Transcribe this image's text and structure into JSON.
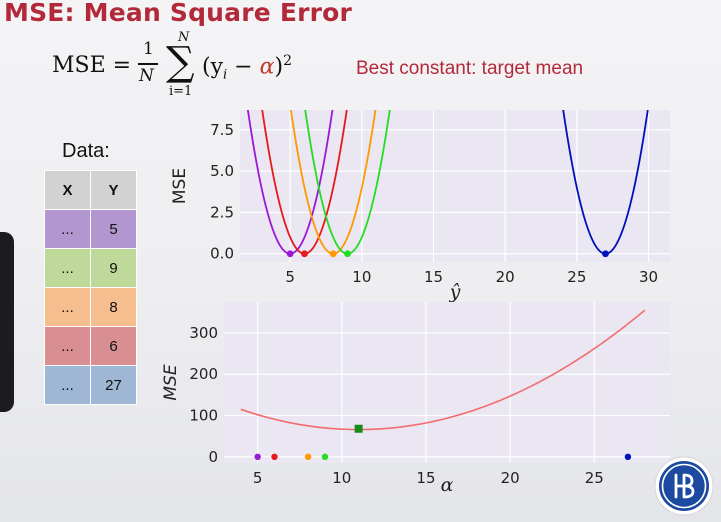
{
  "slide": {
    "title": "MSE: Mean Square Error",
    "subtitle": "Best constant:  target mean"
  },
  "formula": {
    "lhs": "MSE =",
    "frac_num": "1",
    "frac_den": "N",
    "sum_top": "N",
    "sum_bottom": "i=1",
    "body_open": "(y",
    "body_sub": "i",
    "body_minus": " − ",
    "alpha": "α",
    "body_close": ")",
    "power": "2"
  },
  "data_table": {
    "label": "Data:",
    "headers": [
      "X",
      "Y"
    ],
    "rows": [
      {
        "x": "...",
        "y": "5",
        "color": "#b196cf"
      },
      {
        "x": "...",
        "y": "9",
        "color": "#bfd99a"
      },
      {
        "x": "...",
        "y": "8",
        "color": "#f6bd8e"
      },
      {
        "x": "...",
        "y": "6",
        "color": "#d98f91"
      },
      {
        "x": "...",
        "y": "27",
        "color": "#9db7d4"
      }
    ]
  },
  "chart_data": [
    {
      "type": "line",
      "ylabel": "MSE",
      "xlabel": "ŷ",
      "xlim": [
        1.5,
        31.5
      ],
      "ylim": [
        -0.5,
        8.7
      ],
      "xticks": [
        "5",
        "10",
        "15",
        "20",
        "25",
        "30"
      ],
      "yticks": [
        "0.0",
        "2.5",
        "5.0",
        "7.5"
      ],
      "grid": true,
      "series": [
        {
          "target": 5,
          "color": "#9b19d6"
        },
        {
          "target": 6,
          "color": "#e41a1c"
        },
        {
          "target": 8,
          "color": "#ff9900"
        },
        {
          "target": 9,
          "color": "#22dd22"
        },
        {
          "target": 27,
          "color": "#0010bb"
        }
      ]
    },
    {
      "type": "line",
      "ylabel": "MSE",
      "xlabel": "α",
      "xlim": [
        3,
        29.5
      ],
      "ylim": [
        -15,
        375
      ],
      "xticks": [
        "5",
        "10",
        "15",
        "20",
        "25"
      ],
      "yticks": [
        "0",
        "100",
        "200",
        "300"
      ],
      "grid": true,
      "curve": {
        "x_range": [
          4,
          28
        ],
        "color": "#f26d6d",
        "targets": [
          5,
          9,
          8,
          6,
          27
        ]
      },
      "optimum": {
        "alpha": 11,
        "mse": 68,
        "color": "#1a8a1a"
      },
      "target_points": [
        {
          "x": 5,
          "y": 0,
          "color": "#9b19d6"
        },
        {
          "x": 6,
          "y": 0,
          "color": "#e41a1c"
        },
        {
          "x": 8,
          "y": 0,
          "color": "#ff9900"
        },
        {
          "x": 9,
          "y": 0,
          "color": "#22dd22"
        },
        {
          "x": 27,
          "y": 0,
          "color": "#0010bb"
        }
      ]
    }
  ],
  "logo": {
    "icon": "hse-logo-icon",
    "color": "#1b4aa0"
  }
}
